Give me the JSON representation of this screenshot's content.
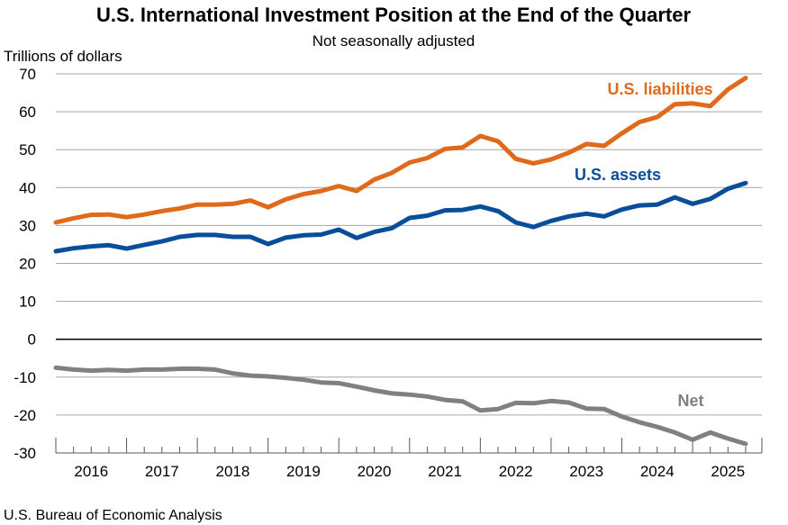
{
  "chart_data": {
    "type": "line",
    "title": "U.S. International Investment Position at the End of the Quarter",
    "subtitle": "Not seasonally adjusted",
    "ylabel": "Trillions of dollars",
    "ylim": [
      -30,
      70
    ],
    "yticks": [
      70,
      60,
      50,
      40,
      30,
      20,
      10,
      0,
      -10,
      -20,
      -30
    ],
    "x_start": "2015 Q4",
    "x_end": "2025 Q3",
    "frequency": "quarterly",
    "xtick_labels": [
      "2016",
      "2017",
      "2018",
      "2019",
      "2020",
      "2021",
      "2022",
      "2023",
      "2024",
      "2025"
    ],
    "grid": true,
    "series": [
      {
        "name": "U.S. liabilities",
        "color": "#E06A1B",
        "values": [
          30.8,
          31.9,
          32.8,
          32.9,
          32.2,
          32.9,
          33.8,
          34.5,
          35.5,
          35.5,
          35.7,
          36.6,
          34.8,
          36.9,
          38.3,
          39.1,
          40.4,
          39.1,
          42.1,
          43.9,
          46.6,
          47.8,
          50.2,
          50.6,
          53.6,
          52.2,
          47.6,
          46.4,
          47.4,
          49.2,
          51.5,
          51.0,
          54.3,
          57.3,
          58.6,
          62.0,
          62.2,
          61.5,
          65.9,
          68.9
        ]
      },
      {
        "name": "U.S. assets",
        "color": "#0A4E9B",
        "values": [
          23.2,
          24.0,
          24.5,
          24.8,
          23.9,
          24.9,
          25.8,
          27.0,
          27.5,
          27.5,
          27.0,
          27.0,
          25.1,
          26.8,
          27.4,
          27.6,
          28.9,
          26.7,
          28.3,
          29.3,
          32.0,
          32.6,
          34.0,
          34.1,
          35.0,
          33.8,
          30.8,
          29.6,
          31.2,
          32.4,
          33.1,
          32.4,
          34.2,
          35.3,
          35.5,
          37.4,
          35.7,
          37.0,
          39.7,
          41.2
        ]
      },
      {
        "name": "Net",
        "color": "#808080",
        "values": [
          -7.5,
          -8.0,
          -8.3,
          -8.1,
          -8.3,
          -8.0,
          -8.0,
          -7.8,
          -7.8,
          -8.0,
          -9.0,
          -9.6,
          -9.8,
          -10.2,
          -10.7,
          -11.4,
          -11.6,
          -12.5,
          -13.5,
          -14.3,
          -14.6,
          -15.1,
          -16.0,
          -16.4,
          -18.8,
          -18.4,
          -16.8,
          -16.9,
          -16.3,
          -16.7,
          -18.3,
          -18.4,
          -20.4,
          -21.9,
          -23.1,
          -24.6,
          -26.5,
          -24.6,
          -26.2,
          -27.6
        ]
      }
    ]
  },
  "source": "U.S. Bureau of Economic Analysis"
}
